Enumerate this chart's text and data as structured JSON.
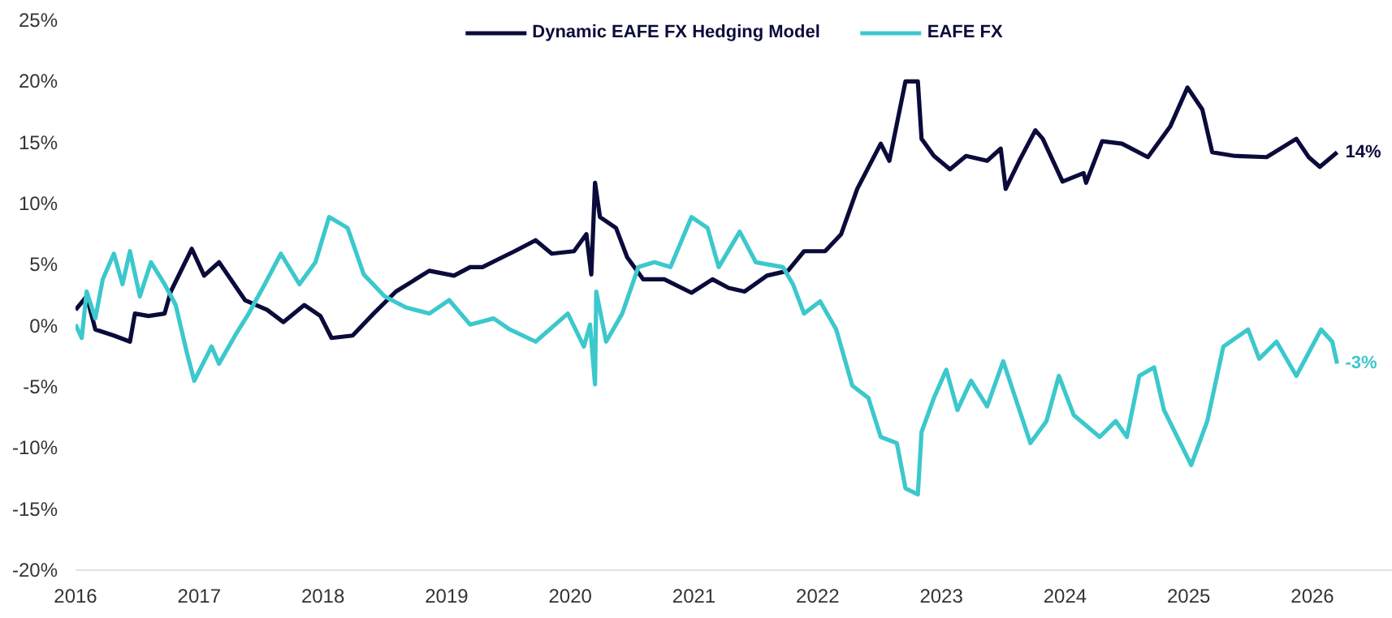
{
  "chart_data": {
    "type": "line",
    "legend": "top",
    "grid": false,
    "line_style": "solid",
    "marker": "none",
    "xlim": [
      2016,
      2026.65
    ],
    "xticks": [
      2016,
      2017,
      2018,
      2019,
      2020,
      2021,
      2022,
      2023,
      2024,
      2025,
      2026
    ],
    "ylim": [
      -20,
      25
    ],
    "yticks": [
      {
        "value": -20,
        "label": "-20%"
      },
      {
        "value": -15,
        "label": "-15%"
      },
      {
        "value": -10,
        "label": "-10%"
      },
      {
        "value": -5,
        "label": "-5%"
      },
      {
        "value": 0,
        "label": "0%"
      },
      {
        "value": 5,
        "label": "5%"
      },
      {
        "value": 10,
        "label": "10%"
      },
      {
        "value": 15,
        "label": "15%"
      },
      {
        "value": 20,
        "label": "20%"
      },
      {
        "value": 25,
        "label": "25%"
      }
    ],
    "annotations": [
      {
        "text": "14%",
        "x": 2026.2,
        "y": 14.2
      },
      {
        "text": "-3%",
        "x": 2026.2,
        "y": -3.1
      }
    ],
    "series": [
      {
        "name": "Dynamic EAFE FX Hedging Model",
        "color": "#0b0b3b",
        "x": [
          2016.0,
          2016.09,
          2016.16,
          2016.31,
          2016.44,
          2016.48,
          2016.59,
          2016.72,
          2016.77,
          2016.94,
          2017.04,
          2017.16,
          2017.37,
          2017.55,
          2017.68,
          2017.85,
          2017.98,
          2018.07,
          2018.24,
          2018.41,
          2018.59,
          2018.86,
          2019.06,
          2019.19,
          2019.29,
          2019.45,
          2019.55,
          2019.72,
          2019.85,
          2020.03,
          2020.13,
          2020.17,
          2020.2,
          2020.24,
          2020.37,
          2020.46,
          2020.59,
          2020.76,
          2020.98,
          2021.15,
          2021.28,
          2021.41,
          2021.59,
          2021.76,
          2021.89,
          2022.06,
          2022.19,
          2022.32,
          2022.51,
          2022.58,
          2022.71,
          2022.81,
          2022.84,
          2022.94,
          2023.07,
          2023.2,
          2023.37,
          2023.48,
          2023.52,
          2023.63,
          2023.76,
          2023.82,
          2023.98,
          2024.15,
          2024.17,
          2024.3,
          2024.46,
          2024.67,
          2024.85,
          2024.99,
          2025.11,
          2025.19,
          2025.37,
          2025.63,
          2025.87,
          2025.97,
          2026.06,
          2026.2
        ],
        "values": [
          1.3,
          2.4,
          -0.3,
          -0.8,
          -1.3,
          1.0,
          0.8,
          1.0,
          2.8,
          6.3,
          4.1,
          5.2,
          2.1,
          1.3,
          0.3,
          1.7,
          0.8,
          -1.0,
          -0.8,
          1.0,
          2.8,
          4.5,
          4.1,
          4.8,
          4.8,
          5.6,
          6.1,
          7.0,
          5.9,
          6.1,
          7.5,
          4.2,
          11.7,
          8.9,
          8.0,
          5.6,
          3.8,
          3.8,
          2.7,
          3.8,
          3.1,
          2.8,
          4.1,
          4.5,
          6.1,
          6.1,
          7.5,
          11.2,
          14.9,
          13.5,
          20.0,
          20.0,
          15.3,
          13.9,
          12.8,
          13.9,
          13.5,
          14.5,
          11.2,
          13.5,
          16.0,
          15.3,
          11.8,
          12.5,
          11.7,
          15.1,
          14.9,
          13.8,
          16.3,
          19.5,
          17.7,
          14.2,
          13.9,
          13.8,
          15.3,
          13.8,
          13.0,
          14.2
        ]
      },
      {
        "name": "EAFE FX",
        "color": "#3cc8cc",
        "x": [
          2016.0,
          2016.05,
          2016.09,
          2016.16,
          2016.22,
          2016.31,
          2016.38,
          2016.44,
          2016.52,
          2016.61,
          2016.72,
          2016.81,
          2016.9,
          2016.96,
          2017.1,
          2017.16,
          2017.29,
          2017.4,
          2017.53,
          2017.66,
          2017.81,
          2017.94,
          2018.05,
          2018.2,
          2018.33,
          2018.5,
          2018.67,
          2018.86,
          2019.02,
          2019.19,
          2019.38,
          2019.51,
          2019.72,
          2019.98,
          2020.11,
          2020.16,
          2020.2,
          2020.21,
          2020.29,
          2020.42,
          2020.55,
          2020.68,
          2020.81,
          2020.98,
          2021.11,
          2021.2,
          2021.37,
          2021.5,
          2021.72,
          2021.8,
          2021.89,
          2022.02,
          2022.15,
          2022.28,
          2022.41,
          2022.51,
          2022.64,
          2022.71,
          2022.81,
          2022.84,
          2022.94,
          2023.04,
          2023.13,
          2023.24,
          2023.37,
          2023.5,
          2023.72,
          2023.85,
          2023.95,
          2024.07,
          2024.28,
          2024.41,
          2024.5,
          2024.6,
          2024.72,
          2024.8,
          2025.02,
          2025.15,
          2025.28,
          2025.48,
          2025.57,
          2025.71,
          2025.87,
          2026.07,
          2026.16,
          2026.2
        ],
        "values": [
          0.1,
          -1.0,
          2.8,
          0.6,
          3.8,
          5.9,
          3.4,
          6.1,
          2.4,
          5.2,
          3.4,
          1.7,
          -2.2,
          -4.5,
          -1.7,
          -3.1,
          -0.8,
          1.0,
          3.4,
          5.9,
          3.4,
          5.2,
          8.9,
          8.0,
          4.2,
          2.4,
          1.5,
          1.0,
          2.1,
          0.1,
          0.6,
          -0.3,
          -1.3,
          1.0,
          -1.7,
          0.1,
          -4.8,
          2.8,
          -1.3,
          1.0,
          4.8,
          5.2,
          4.8,
          8.9,
          8.0,
          4.8,
          7.7,
          5.2,
          4.8,
          3.4,
          1.0,
          2.0,
          -0.3,
          -4.9,
          -5.9,
          -9.1,
          -9.6,
          -13.3,
          -13.8,
          -8.7,
          -5.9,
          -3.6,
          -6.9,
          -4.5,
          -6.6,
          -2.9,
          -9.6,
          -7.8,
          -4.1,
          -7.3,
          -9.1,
          -7.8,
          -9.1,
          -4.1,
          -3.4,
          -6.9,
          -11.4,
          -7.8,
          -1.7,
          -0.3,
          -2.7,
          -1.3,
          -4.1,
          -0.3,
          -1.3,
          -3.1
        ]
      }
    ]
  }
}
